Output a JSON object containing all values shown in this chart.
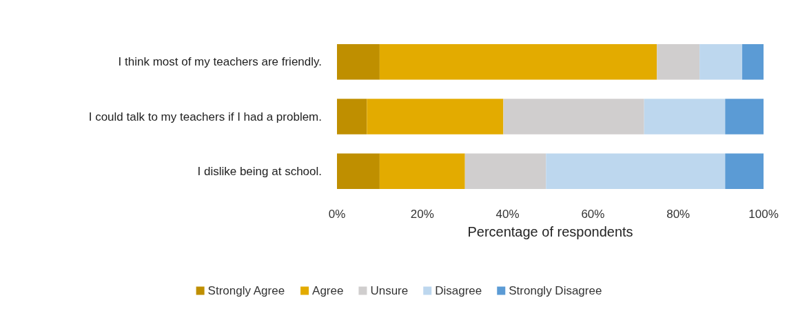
{
  "chart_data": {
    "type": "bar",
    "orientation": "horizontal",
    "stacked": true,
    "xlabel": "Percentage of respondents",
    "categories": [
      "I think most of my teachers are friendly.",
      "I could talk to my teachers if I had a problem.",
      "I dislike being at school."
    ],
    "series": [
      {
        "name": "Strongly Agree",
        "color": "#bf8f00",
        "values": [
          10,
          7,
          10
        ]
      },
      {
        "name": "Agree",
        "color": "#e3ab00",
        "values": [
          65,
          32,
          20
        ]
      },
      {
        "name": "Unsure",
        "color": "#d0cece",
        "values": [
          10,
          33,
          19
        ]
      },
      {
        "name": "Disagree",
        "color": "#bdd7ee",
        "values": [
          10,
          19,
          42
        ]
      },
      {
        "name": "Strongly Disagree",
        "color": "#5b9bd5",
        "values": [
          5,
          9,
          9
        ]
      }
    ],
    "xlim": [
      0,
      100
    ],
    "xticks": [
      {
        "value": 0,
        "label": "0%"
      },
      {
        "value": 20,
        "label": "20%"
      },
      {
        "value": 40,
        "label": "40%"
      },
      {
        "value": 60,
        "label": "60%"
      },
      {
        "value": 80,
        "label": "80%"
      },
      {
        "value": 100,
        "label": "100%"
      }
    ],
    "grid": false,
    "legend": "bottom"
  }
}
